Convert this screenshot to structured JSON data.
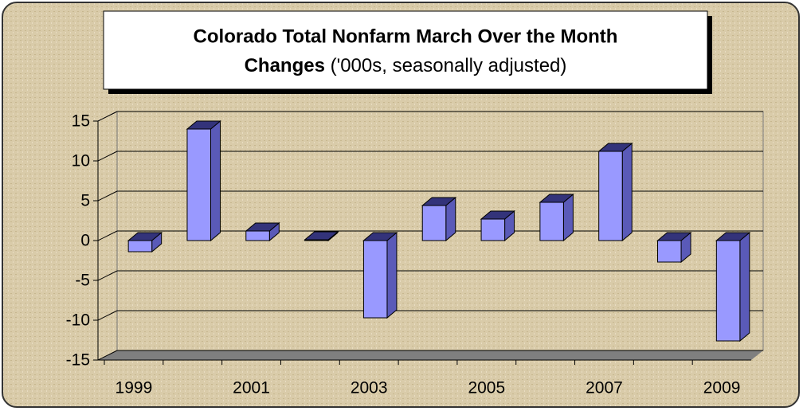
{
  "chart_data": {
    "type": "bar3d",
    "title": "Colorado Total Nonfarm March Over the Month",
    "title_line2": "Changes",
    "subtitle": "('000s, seasonally adjusted)",
    "categories": [
      "1999",
      null,
      "2001",
      null,
      "2003",
      null,
      "2005",
      null,
      "2007",
      null,
      "2009"
    ],
    "values": [
      -1.4,
      14,
      1.2,
      0.1,
      -9.7,
      4.4,
      2.7,
      4.8,
      11.2,
      -2.7,
      -12.6
    ],
    "color": "#9999ff",
    "ylim": [
      -15,
      15
    ],
    "yticks": [
      -15,
      -10,
      -5,
      0,
      5,
      10,
      15
    ],
    "grid": true
  }
}
